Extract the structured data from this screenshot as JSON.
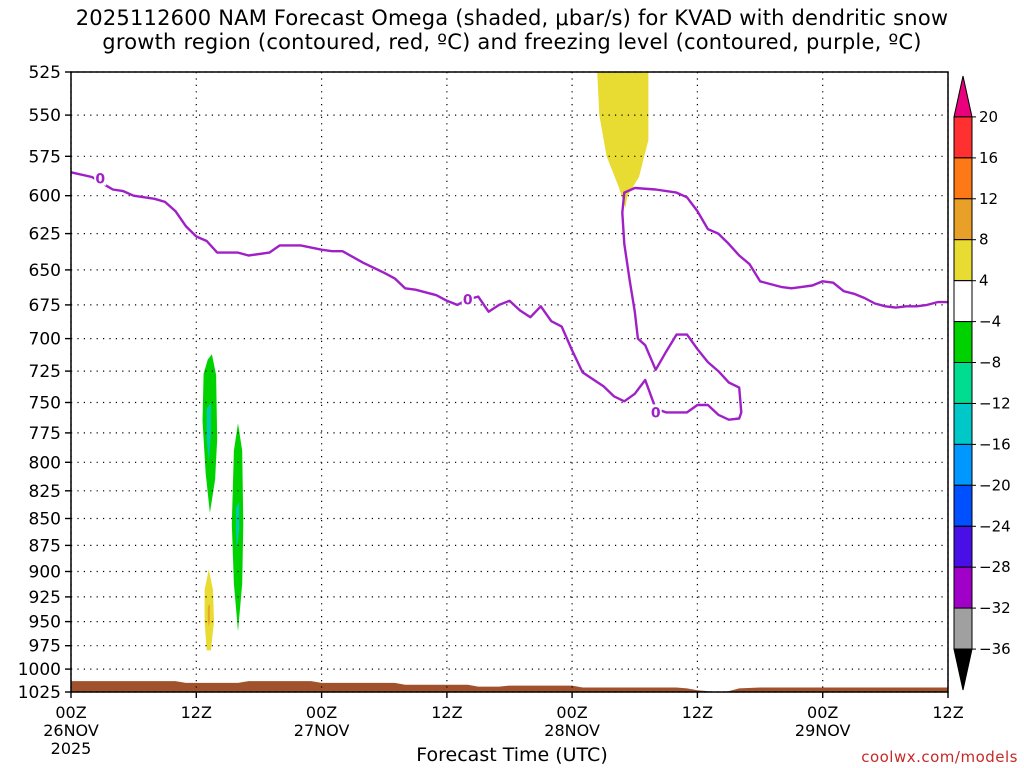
{
  "title": {
    "line1": "2025112600 NAM Forecast Omega (shaded, μbar/s) for KVAD with dendritic snow",
    "line2": "growth region (contoured, red, ºC) and freezing level (contoured, purple, ºC)"
  },
  "watermark": "coolwx.com/models",
  "chart_data": {
    "type": "contour",
    "title": "2025112600 NAM Forecast Omega (shaded, μbar/s) for KVAD with dendritic snow growth region (contoured, red, ºC) and freezing level (contoured, purple, ºC)",
    "xlabel": "Forecast Time (UTC)",
    "ylabel": "",
    "x_unit": "forecast hour",
    "xlim": [
      0,
      84
    ],
    "y_unit": "hPa",
    "ylim": [
      1025,
      525
    ],
    "y_scale": "log-pressure",
    "grid": true,
    "x_ticks": [
      {
        "hour": 0,
        "label": "00Z",
        "sub1": "26NOV",
        "sub2": "2025"
      },
      {
        "hour": 12,
        "label": "12Z",
        "sub1": "",
        "sub2": ""
      },
      {
        "hour": 24,
        "label": "00Z",
        "sub1": "27NOV",
        "sub2": ""
      },
      {
        "hour": 36,
        "label": "12Z",
        "sub1": "",
        "sub2": ""
      },
      {
        "hour": 48,
        "label": "00Z",
        "sub1": "28NOV",
        "sub2": ""
      },
      {
        "hour": 60,
        "label": "12Z",
        "sub1": "",
        "sub2": ""
      },
      {
        "hour": 72,
        "label": "00Z",
        "sub1": "29NOV",
        "sub2": ""
      },
      {
        "hour": 84,
        "label": "12Z",
        "sub1": "",
        "sub2": ""
      }
    ],
    "y_ticks": [
      "525",
      "550",
      "575",
      "600",
      "625",
      "650",
      "675",
      "700",
      "725",
      "750",
      "775",
      "800",
      "825",
      "850",
      "875",
      "900",
      "925",
      "950",
      "975",
      "1000",
      "1025"
    ],
    "colorbar": {
      "labels": [
        "20",
        "16",
        "12",
        "8",
        "4",
        "−4",
        "−8",
        "−12",
        "−16",
        "−20",
        "−24",
        "−28",
        "−32",
        "−36"
      ],
      "colors": [
        "#e8007c",
        "#ff3030",
        "#ff7818",
        "#e8a028",
        "#e8dc32",
        "#ffffff",
        "#00d200",
        "#00dc90",
        "#00c8c8",
        "#0098ff",
        "#0050ff",
        "#4810e6",
        "#a000c8",
        "#a0a0a0",
        "#000000"
      ]
    },
    "freezing_level": {
      "color": "#a020c8",
      "label": "0",
      "main": [
        [
          0,
          585
        ],
        [
          2,
          588
        ],
        [
          3,
          592
        ],
        [
          4,
          596
        ],
        [
          5,
          597
        ],
        [
          6,
          600
        ],
        [
          8,
          602
        ],
        [
          9,
          604
        ],
        [
          10,
          610
        ],
        [
          11,
          620
        ],
        [
          12,
          627
        ],
        [
          13,
          630
        ],
        [
          14,
          638
        ],
        [
          16,
          638
        ],
        [
          17,
          640
        ],
        [
          19,
          638
        ],
        [
          20,
          633
        ],
        [
          22,
          633
        ],
        [
          24,
          636
        ],
        [
          25,
          637
        ],
        [
          26,
          637
        ],
        [
          28,
          645
        ],
        [
          30,
          652
        ],
        [
          31,
          656
        ],
        [
          32,
          663
        ],
        [
          33,
          664
        ],
        [
          35,
          668
        ],
        [
          36,
          672
        ],
        [
          37,
          675
        ],
        [
          38,
          671
        ],
        [
          39,
          669
        ],
        [
          40,
          680
        ],
        [
          41,
          675
        ],
        [
          42,
          672
        ],
        [
          43,
          679
        ],
        [
          44,
          684
        ],
        [
          45,
          676
        ],
        [
          46,
          687
        ],
        [
          47,
          691
        ],
        [
          48,
          709
        ],
        [
          49,
          726
        ],
        [
          51,
          737
        ],
        [
          52,
          745
        ],
        [
          53,
          749
        ],
        [
          54,
          743
        ],
        [
          55,
          732
        ],
        [
          56,
          755
        ],
        [
          57,
          758
        ],
        [
          59,
          758
        ],
        [
          60,
          752
        ],
        [
          61,
          752
        ],
        [
          62,
          760
        ],
        [
          63,
          764
        ],
        [
          64,
          763
        ],
        [
          64.2,
          758
        ],
        [
          64,
          738
        ],
        [
          63,
          734
        ],
        [
          62,
          725
        ],
        [
          61,
          718
        ],
        [
          60,
          708
        ],
        [
          59,
          697
        ],
        [
          58,
          697
        ],
        [
          57,
          710
        ],
        [
          56,
          724
        ],
        [
          55,
          705
        ],
        [
          54.3,
          700
        ],
        [
          54,
          680
        ],
        [
          53.5,
          657
        ],
        [
          53,
          632
        ],
        [
          52.8,
          611
        ],
        [
          53,
          598
        ],
        [
          54,
          595
        ],
        [
          56,
          596
        ],
        [
          58,
          598
        ],
        [
          59,
          601
        ],
        [
          60,
          610
        ],
        [
          61,
          622
        ],
        [
          62,
          625
        ],
        [
          63,
          632
        ],
        [
          64,
          640
        ],
        [
          65,
          646
        ],
        [
          66,
          658
        ],
        [
          67,
          660
        ],
        [
          68,
          662
        ],
        [
          69,
          663
        ],
        [
          70,
          662
        ],
        [
          71,
          661
        ],
        [
          72,
          658
        ],
        [
          73,
          659
        ],
        [
          74,
          665
        ],
        [
          75,
          667
        ],
        [
          76,
          670
        ],
        [
          77,
          674
        ],
        [
          78,
          676
        ],
        [
          79,
          677
        ],
        [
          80,
          676
        ],
        [
          81,
          676
        ],
        [
          82,
          675
        ],
        [
          83,
          673
        ],
        [
          84,
          673
        ]
      ],
      "label_points": [
        [
          2.8,
          589
        ],
        [
          38,
          671
        ],
        [
          56,
          758
        ]
      ]
    },
    "omega_shaded": [
      {
        "value": "4 to 8",
        "color": "#e8dc32",
        "points": [
          [
            50.4,
            525
          ],
          [
            55.3,
            525
          ],
          [
            55.3,
            565
          ],
          [
            54.4,
            588
          ],
          [
            53.3,
            600
          ],
          [
            53.1,
            608
          ],
          [
            52.5,
            595
          ],
          [
            51.3,
            575
          ],
          [
            50.6,
            550
          ]
        ]
      },
      {
        "value": "-8 to -4",
        "color": "#00d200",
        "points": [
          [
            12.7,
            727
          ],
          [
            13.1,
            716
          ],
          [
            13.5,
            712
          ],
          [
            13.9,
            728
          ],
          [
            14.0,
            780
          ],
          [
            13.8,
            815
          ],
          [
            13.3,
            845
          ],
          [
            12.9,
            810
          ],
          [
            12.6,
            765
          ]
        ]
      },
      {
        "value": "-8 to -4",
        "color": "#00d200",
        "points": [
          [
            15.6,
            790
          ],
          [
            16.0,
            767
          ],
          [
            16.4,
            790
          ],
          [
            16.5,
            855
          ],
          [
            16.4,
            912
          ],
          [
            16.0,
            960
          ],
          [
            15.6,
            912
          ],
          [
            15.4,
            855
          ]
        ]
      },
      {
        "value": "4 to 8",
        "color": "#e8dc32",
        "points": [
          [
            12.8,
            918
          ],
          [
            13.2,
            898
          ],
          [
            13.6,
            918
          ],
          [
            13.7,
            950
          ],
          [
            13.4,
            980
          ],
          [
            13.0,
            980
          ],
          [
            12.8,
            950
          ]
        ]
      }
    ],
    "omega_inner": [
      {
        "color": "#00c8c8",
        "points": [
          [
            13.0,
            755
          ],
          [
            13.4,
            750
          ],
          [
            13.4,
            775
          ],
          [
            13.2,
            800
          ],
          [
            13.0,
            780
          ]
        ]
      },
      {
        "color": "#00c8c8",
        "points": [
          [
            15.8,
            840
          ],
          [
            16.1,
            835
          ],
          [
            16.1,
            860
          ],
          [
            15.9,
            880
          ],
          [
            15.8,
            860
          ]
        ]
      },
      {
        "color": "#e8a028",
        "points": [
          [
            13.1,
            935
          ],
          [
            13.3,
            932
          ],
          [
            13.3,
            950
          ],
          [
            13.2,
            955
          ],
          [
            13.1,
            948
          ]
        ]
      }
    ],
    "terrain": {
      "color": "#a0522d",
      "surface": [
        [
          0,
          1013
        ],
        [
          10,
          1013
        ],
        [
          11,
          1015
        ],
        [
          16,
          1015
        ],
        [
          17,
          1013
        ],
        [
          23,
          1013
        ],
        [
          24,
          1015
        ],
        [
          31,
          1015
        ],
        [
          32,
          1017
        ],
        [
          38,
          1017
        ],
        [
          39,
          1019
        ],
        [
          41,
          1019
        ],
        [
          42,
          1018
        ],
        [
          48,
          1018
        ],
        [
          49,
          1020
        ],
        [
          58,
          1020
        ],
        [
          59,
          1021
        ],
        [
          60,
          1023
        ],
        [
          62,
          1025
        ],
        [
          63,
          1024
        ],
        [
          64,
          1021
        ],
        [
          66,
          1020
        ],
        [
          84,
          1020
        ]
      ]
    }
  }
}
